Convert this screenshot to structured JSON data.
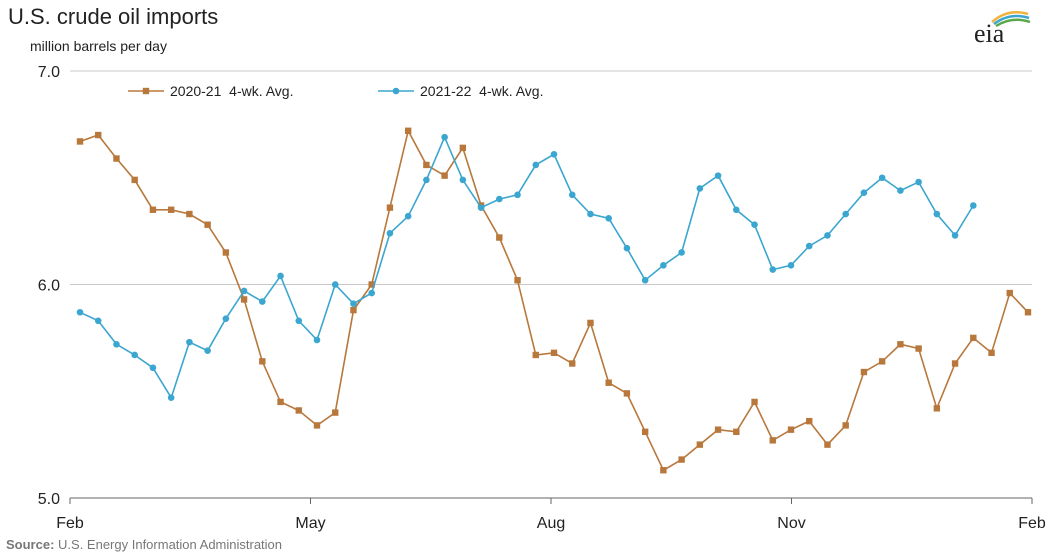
{
  "header": {
    "title": "U.S. crude oil imports",
    "subtitle": "million barrels per day",
    "logo_text": "eia"
  },
  "source": {
    "label": "Source:",
    "text": "U.S. Energy Information Administration"
  },
  "colors": {
    "series_2020": "#b8783c",
    "series_2021": "#3ba6d0",
    "grid": "#c8c8c8",
    "axis": "#666666"
  },
  "chart_data": {
    "type": "line",
    "title": "U.S. crude oil imports",
    "ylabel": "million barrels per day",
    "ylim": [
      5.0,
      7.0
    ],
    "yticks": [
      "5.0",
      "6.0",
      "7.0"
    ],
    "xticks": [
      "Feb",
      "May",
      "Aug",
      "Nov",
      "Feb"
    ],
    "legend_position": "top-left",
    "series": [
      {
        "name": "2020-21  4-wk. Avg.",
        "marker": "square",
        "values": [
          6.67,
          6.7,
          6.59,
          6.49,
          6.35,
          6.35,
          6.33,
          6.28,
          6.15,
          5.93,
          5.64,
          5.45,
          5.41,
          5.34,
          5.4,
          5.88,
          6.0,
          6.36,
          6.72,
          6.56,
          6.51,
          6.64,
          6.37,
          6.22,
          6.02,
          5.67,
          5.68,
          5.63,
          5.82,
          5.54,
          5.49,
          5.31,
          5.13,
          5.18,
          5.25,
          5.32,
          5.31,
          5.45,
          5.27,
          5.32,
          5.36,
          5.25,
          5.34,
          5.59,
          5.64,
          5.72,
          5.7,
          5.42,
          5.63,
          5.75,
          5.68,
          5.96,
          5.87
        ]
      },
      {
        "name": "2021-22  4-wk. Avg.",
        "marker": "circle",
        "values": [
          5.87,
          5.83,
          5.72,
          5.67,
          5.61,
          5.47,
          5.73,
          5.69,
          5.84,
          5.97,
          5.92,
          6.04,
          5.83,
          5.74,
          6.0,
          5.91,
          5.96,
          6.24,
          6.32,
          6.49,
          6.69,
          6.49,
          6.36,
          6.4,
          6.42,
          6.56,
          6.61,
          6.42,
          6.33,
          6.31,
          6.17,
          6.02,
          6.09,
          6.15,
          6.45,
          6.51,
          6.35,
          6.28,
          6.07,
          6.09,
          6.18,
          6.23,
          6.33,
          6.43,
          6.5,
          6.44,
          6.48,
          6.33,
          6.23,
          6.37
        ]
      }
    ]
  }
}
